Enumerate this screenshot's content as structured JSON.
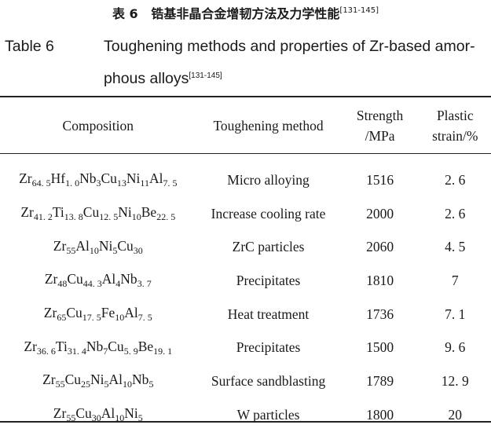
{
  "caption_cn": {
    "label": "表 6",
    "title": "锆基非晶合金增韧方法及力学性能",
    "ref": "[131-145]"
  },
  "caption_en": {
    "label": "Table 6",
    "title_line1": "Toughening methods and properties of Zr-based amor-",
    "title_line2": "phous alloys",
    "ref": "[131-145]"
  },
  "table": {
    "headers": {
      "composition": "Composition",
      "method": "Toughening method",
      "strength_1": "Strength",
      "strength_2": "/MPa",
      "strain_1": "Plastic",
      "strain_2": "strain/%"
    },
    "rows": [
      {
        "composition": [
          [
            "Zr",
            "64. 5"
          ],
          [
            "Hf",
            "1. 0"
          ],
          [
            "Nb",
            "3"
          ],
          [
            "Cu",
            "13"
          ],
          [
            "Ni",
            "11"
          ],
          [
            "Al",
            "7. 5"
          ]
        ],
        "method": "Micro alloying",
        "strength": "1516",
        "strain": "2. 6"
      },
      {
        "composition": [
          [
            "Zr",
            "41. 2"
          ],
          [
            "Ti",
            "13. 8"
          ],
          [
            "Cu",
            "12. 5"
          ],
          [
            "Ni",
            "10"
          ],
          [
            "Be",
            "22. 5"
          ]
        ],
        "method": "Increase cooling rate",
        "strength": "2000",
        "strain": "2. 6"
      },
      {
        "composition": [
          [
            "Zr",
            "55"
          ],
          [
            "Al",
            "10"
          ],
          [
            "Ni",
            "5"
          ],
          [
            "Cu",
            "30"
          ]
        ],
        "method": "ZrC particles",
        "strength": "2060",
        "strain": "4. 5"
      },
      {
        "composition": [
          [
            "Zr",
            "48"
          ],
          [
            "Cu",
            "44. 3"
          ],
          [
            "Al",
            "4"
          ],
          [
            "Nb",
            "3. 7"
          ]
        ],
        "method": "Precipitates",
        "strength": "1810",
        "strain": "7"
      },
      {
        "composition": [
          [
            "Zr",
            "65"
          ],
          [
            "Cu",
            "17. 5"
          ],
          [
            "Fe",
            "10"
          ],
          [
            "Al",
            "7. 5"
          ]
        ],
        "method": "Heat treatment",
        "strength": "1736",
        "strain": "7. 1"
      },
      {
        "composition": [
          [
            "Zr",
            "36. 6"
          ],
          [
            "Ti",
            "31. 4"
          ],
          [
            "Nb",
            "7"
          ],
          [
            "Cu",
            "5. 9"
          ],
          [
            "Be",
            "19. 1"
          ]
        ],
        "method": "Precipitates",
        "strength": "1500",
        "strain": "9. 6"
      },
      {
        "composition": [
          [
            "Zr",
            "55"
          ],
          [
            "Cu",
            "25"
          ],
          [
            "Ni",
            "5"
          ],
          [
            "Al",
            "10"
          ],
          [
            "Nb",
            "5"
          ]
        ],
        "method": "Surface sandblasting",
        "strength": "1789",
        "strain": "12. 9"
      },
      {
        "composition": [
          [
            "Zr",
            "55"
          ],
          [
            "Cu",
            "30"
          ],
          [
            "Al",
            "10"
          ],
          [
            "Ni",
            "5"
          ]
        ],
        "method": "W particles",
        "strength": "1800",
        "strain": "20"
      }
    ]
  }
}
